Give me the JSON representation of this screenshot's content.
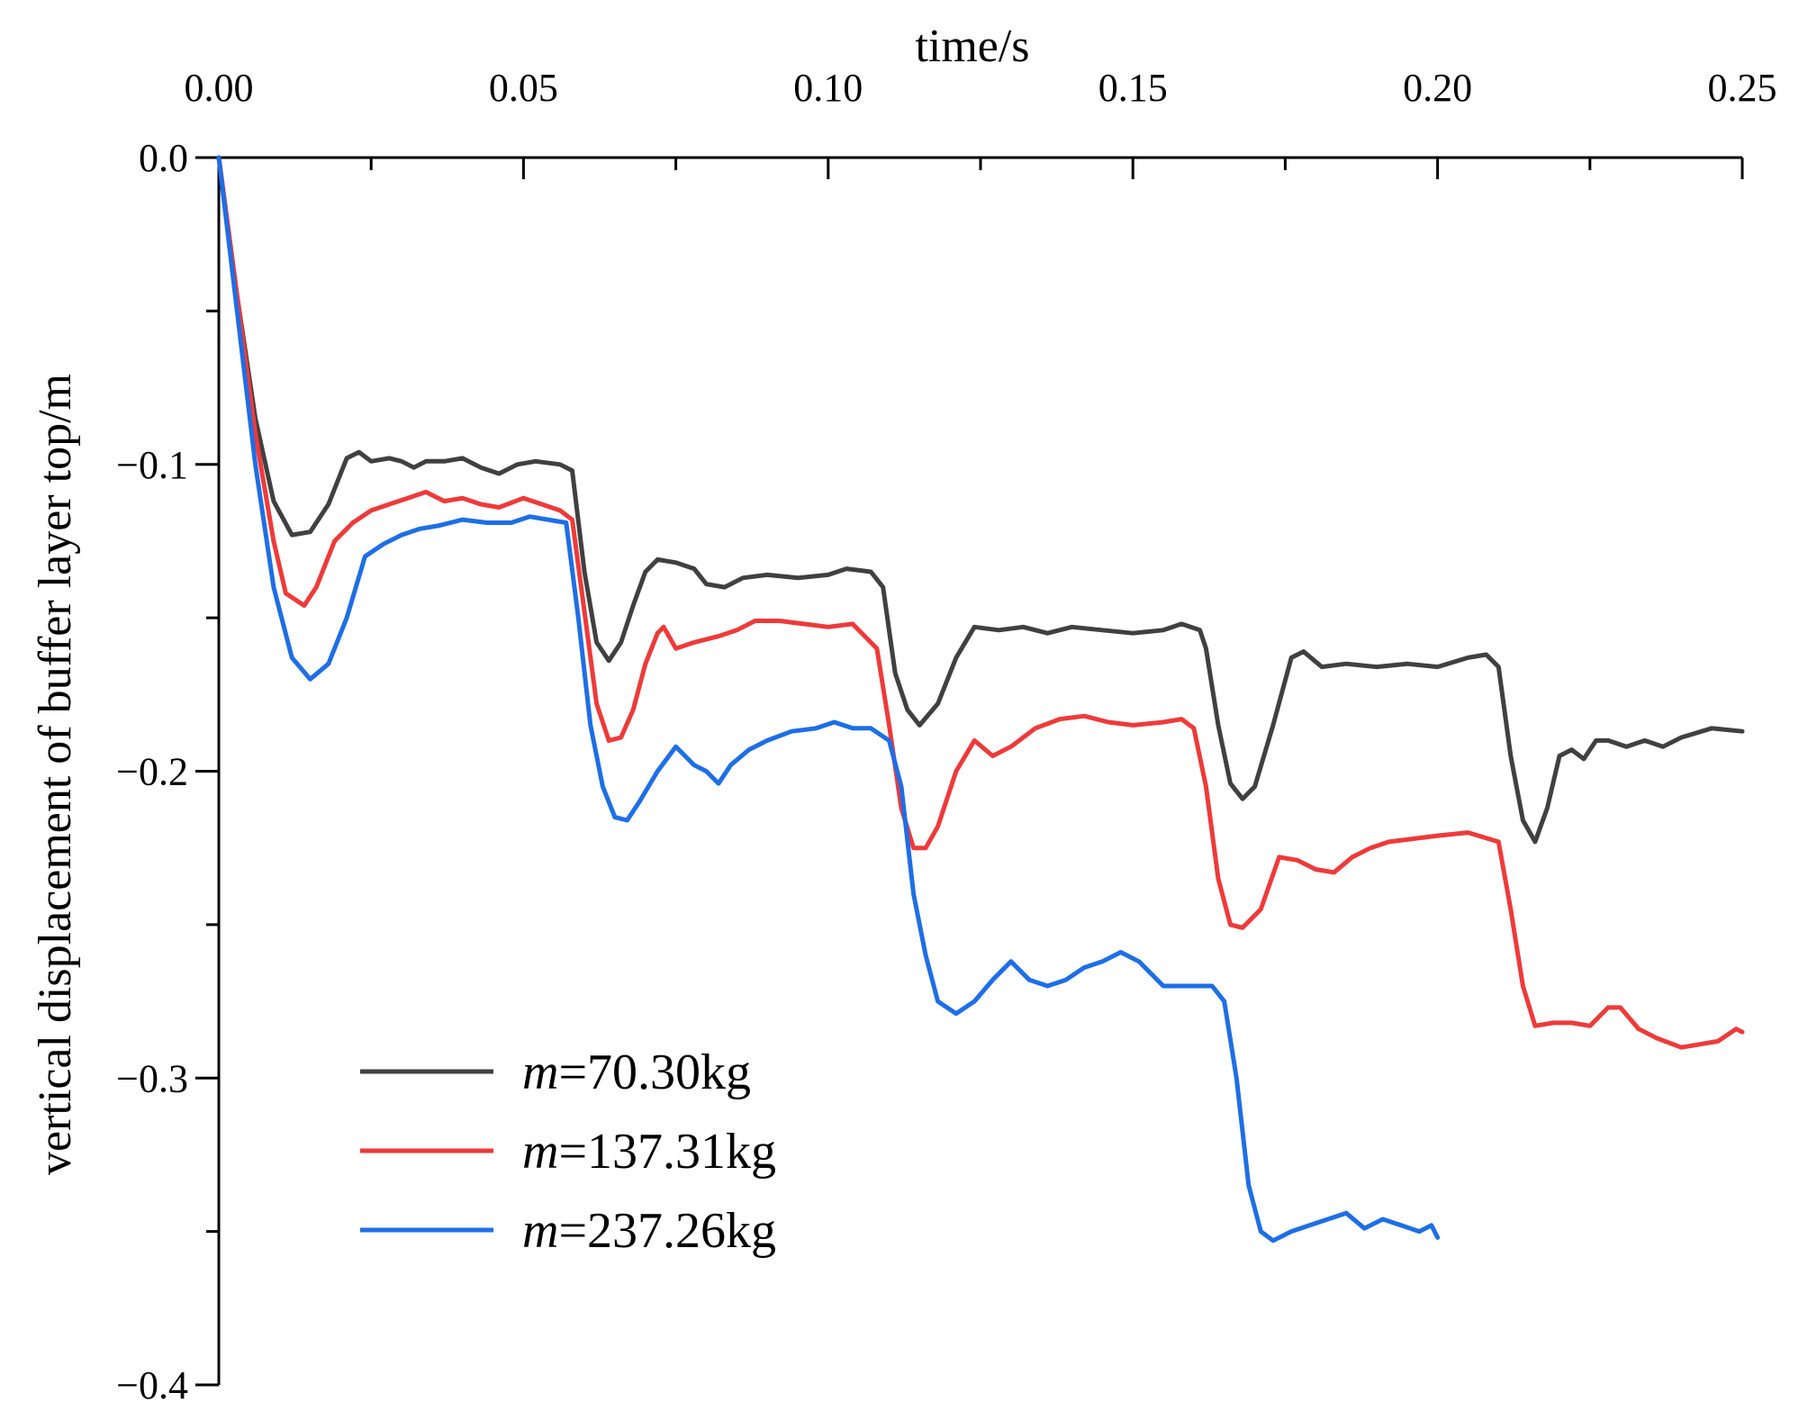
{
  "chart_data": {
    "type": "line",
    "title": "",
    "xlabel": "time/s",
    "ylabel": "vertical displacement of buffer layer top/m",
    "xlim": [
      0,
      0.25
    ],
    "ylim": [
      -0.4,
      0
    ],
    "x_ticks": [
      0.0,
      0.05,
      0.1,
      0.15,
      0.2,
      0.25
    ],
    "x_tick_labels": [
      "0.00",
      "0.05",
      "0.10",
      "0.15",
      "0.20",
      "0.25"
    ],
    "x_minor_ticks": [
      0.025,
      0.075,
      0.125,
      0.175,
      0.225
    ],
    "y_ticks": [
      0.0,
      -0.1,
      -0.2,
      -0.3,
      -0.4
    ],
    "y_tick_labels": [
      "0.0",
      "−0.1",
      "−0.2",
      "−0.3",
      "−0.4"
    ],
    "y_minor_ticks": [
      -0.05,
      -0.15,
      -0.25,
      -0.35
    ],
    "x_axis_position": "top",
    "grid": false,
    "legend_position": "bottom-left",
    "series": [
      {
        "name": "m=70.30kg",
        "legend_var": "m",
        "legend_value": "=70.30kg",
        "color": "#404040",
        "points": [
          [
            0,
            0
          ],
          [
            0.003,
            -0.045
          ],
          [
            0.006,
            -0.085
          ],
          [
            0.009,
            -0.112
          ],
          [
            0.012,
            -0.123
          ],
          [
            0.015,
            -0.122
          ],
          [
            0.018,
            -0.113
          ],
          [
            0.021,
            -0.098
          ],
          [
            0.023,
            -0.096
          ],
          [
            0.025,
            -0.099
          ],
          [
            0.028,
            -0.098
          ],
          [
            0.03,
            -0.099
          ],
          [
            0.032,
            -0.101
          ],
          [
            0.034,
            -0.099
          ],
          [
            0.037,
            -0.099
          ],
          [
            0.04,
            -0.098
          ],
          [
            0.043,
            -0.101
          ],
          [
            0.046,
            -0.103
          ],
          [
            0.049,
            -0.1
          ],
          [
            0.052,
            -0.099
          ],
          [
            0.056,
            -0.1
          ],
          [
            0.058,
            -0.102
          ],
          [
            0.06,
            -0.135
          ],
          [
            0.062,
            -0.158
          ],
          [
            0.064,
            -0.164
          ],
          [
            0.066,
            -0.158
          ],
          [
            0.068,
            -0.146
          ],
          [
            0.07,
            -0.135
          ],
          [
            0.072,
            -0.131
          ],
          [
            0.075,
            -0.132
          ],
          [
            0.078,
            -0.134
          ],
          [
            0.08,
            -0.139
          ],
          [
            0.083,
            -0.14
          ],
          [
            0.086,
            -0.137
          ],
          [
            0.09,
            -0.136
          ],
          [
            0.095,
            -0.137
          ],
          [
            0.1,
            -0.136
          ],
          [
            0.103,
            -0.134
          ],
          [
            0.107,
            -0.135
          ],
          [
            0.109,
            -0.14
          ],
          [
            0.111,
            -0.168
          ],
          [
            0.113,
            -0.18
          ],
          [
            0.115,
            -0.185
          ],
          [
            0.118,
            -0.178
          ],
          [
            0.121,
            -0.163
          ],
          [
            0.124,
            -0.153
          ],
          [
            0.128,
            -0.154
          ],
          [
            0.132,
            -0.153
          ],
          [
            0.136,
            -0.155
          ],
          [
            0.14,
            -0.153
          ],
          [
            0.145,
            -0.154
          ],
          [
            0.15,
            -0.155
          ],
          [
            0.155,
            -0.154
          ],
          [
            0.158,
            -0.152
          ],
          [
            0.161,
            -0.154
          ],
          [
            0.162,
            -0.16
          ],
          [
            0.164,
            -0.185
          ],
          [
            0.166,
            -0.204
          ],
          [
            0.168,
            -0.209
          ],
          [
            0.17,
            -0.205
          ],
          [
            0.173,
            -0.185
          ],
          [
            0.176,
            -0.163
          ],
          [
            0.178,
            -0.161
          ],
          [
            0.181,
            -0.166
          ],
          [
            0.185,
            -0.165
          ],
          [
            0.19,
            -0.166
          ],
          [
            0.195,
            -0.165
          ],
          [
            0.2,
            -0.166
          ],
          [
            0.205,
            -0.163
          ],
          [
            0.208,
            -0.162
          ],
          [
            0.21,
            -0.166
          ],
          [
            0.212,
            -0.195
          ],
          [
            0.214,
            -0.216
          ],
          [
            0.216,
            -0.223
          ],
          [
            0.218,
            -0.212
          ],
          [
            0.22,
            -0.195
          ],
          [
            0.222,
            -0.193
          ],
          [
            0.224,
            -0.196
          ],
          [
            0.226,
            -0.19
          ],
          [
            0.228,
            -0.19
          ],
          [
            0.231,
            -0.192
          ],
          [
            0.234,
            -0.19
          ],
          [
            0.237,
            -0.192
          ],
          [
            0.24,
            -0.189
          ],
          [
            0.245,
            -0.186
          ],
          [
            0.25,
            -0.187
          ]
        ]
      },
      {
        "name": "m=137.31kg",
        "legend_var": "m",
        "legend_value": "=137.31kg",
        "color": "#ee3a3a",
        "points": [
          [
            0,
            0
          ],
          [
            0.003,
            -0.045
          ],
          [
            0.006,
            -0.09
          ],
          [
            0.009,
            -0.125
          ],
          [
            0.011,
            -0.142
          ],
          [
            0.014,
            -0.146
          ],
          [
            0.016,
            -0.14
          ],
          [
            0.019,
            -0.125
          ],
          [
            0.022,
            -0.119
          ],
          [
            0.025,
            -0.115
          ],
          [
            0.028,
            -0.113
          ],
          [
            0.031,
            -0.111
          ],
          [
            0.034,
            -0.109
          ],
          [
            0.037,
            -0.112
          ],
          [
            0.04,
            -0.111
          ],
          [
            0.043,
            -0.113
          ],
          [
            0.046,
            -0.114
          ],
          [
            0.05,
            -0.111
          ],
          [
            0.053,
            -0.113
          ],
          [
            0.056,
            -0.115
          ],
          [
            0.058,
            -0.118
          ],
          [
            0.06,
            -0.148
          ],
          [
            0.062,
            -0.178
          ],
          [
            0.064,
            -0.19
          ],
          [
            0.066,
            -0.189
          ],
          [
            0.068,
            -0.18
          ],
          [
            0.07,
            -0.165
          ],
          [
            0.072,
            -0.155
          ],
          [
            0.073,
            -0.153
          ],
          [
            0.075,
            -0.16
          ],
          [
            0.078,
            -0.158
          ],
          [
            0.082,
            -0.156
          ],
          [
            0.085,
            -0.154
          ],
          [
            0.088,
            -0.151
          ],
          [
            0.092,
            -0.151
          ],
          [
            0.096,
            -0.152
          ],
          [
            0.1,
            -0.153
          ],
          [
            0.104,
            -0.152
          ],
          [
            0.108,
            -0.16
          ],
          [
            0.11,
            -0.185
          ],
          [
            0.112,
            -0.212
          ],
          [
            0.114,
            -0.225
          ],
          [
            0.116,
            -0.225
          ],
          [
            0.118,
            -0.218
          ],
          [
            0.121,
            -0.2
          ],
          [
            0.124,
            -0.19
          ],
          [
            0.127,
            -0.195
          ],
          [
            0.13,
            -0.192
          ],
          [
            0.134,
            -0.186
          ],
          [
            0.138,
            -0.183
          ],
          [
            0.142,
            -0.182
          ],
          [
            0.146,
            -0.184
          ],
          [
            0.15,
            -0.185
          ],
          [
            0.155,
            -0.184
          ],
          [
            0.158,
            -0.183
          ],
          [
            0.16,
            -0.186
          ],
          [
            0.162,
            -0.205
          ],
          [
            0.164,
            -0.235
          ],
          [
            0.166,
            -0.25
          ],
          [
            0.168,
            -0.251
          ],
          [
            0.171,
            -0.245
          ],
          [
            0.174,
            -0.228
          ],
          [
            0.177,
            -0.229
          ],
          [
            0.18,
            -0.232
          ],
          [
            0.183,
            -0.233
          ],
          [
            0.186,
            -0.228
          ],
          [
            0.189,
            -0.225
          ],
          [
            0.192,
            -0.223
          ],
          [
            0.196,
            -0.222
          ],
          [
            0.2,
            -0.221
          ],
          [
            0.205,
            -0.22
          ],
          [
            0.21,
            -0.223
          ],
          [
            0.212,
            -0.245
          ],
          [
            0.214,
            -0.27
          ],
          [
            0.216,
            -0.283
          ],
          [
            0.219,
            -0.282
          ],
          [
            0.222,
            -0.282
          ],
          [
            0.225,
            -0.283
          ],
          [
            0.228,
            -0.277
          ],
          [
            0.23,
            -0.277
          ],
          [
            0.233,
            -0.284
          ],
          [
            0.236,
            -0.287
          ],
          [
            0.24,
            -0.29
          ],
          [
            0.243,
            -0.289
          ],
          [
            0.246,
            -0.288
          ],
          [
            0.249,
            -0.284
          ],
          [
            0.25,
            -0.285
          ]
        ]
      },
      {
        "name": "m=237.26kg",
        "legend_var": "m",
        "legend_value": "=237.26kg",
        "color": "#1e6ee6",
        "points": [
          [
            0,
            0
          ],
          [
            0.003,
            -0.05
          ],
          [
            0.006,
            -0.1
          ],
          [
            0.009,
            -0.14
          ],
          [
            0.012,
            -0.163
          ],
          [
            0.015,
            -0.17
          ],
          [
            0.018,
            -0.165
          ],
          [
            0.021,
            -0.15
          ],
          [
            0.024,
            -0.13
          ],
          [
            0.027,
            -0.126
          ],
          [
            0.03,
            -0.123
          ],
          [
            0.033,
            -0.121
          ],
          [
            0.036,
            -0.12
          ],
          [
            0.04,
            -0.118
          ],
          [
            0.044,
            -0.119
          ],
          [
            0.048,
            -0.119
          ],
          [
            0.051,
            -0.117
          ],
          [
            0.054,
            -0.118
          ],
          [
            0.057,
            -0.119
          ],
          [
            0.059,
            -0.15
          ],
          [
            0.061,
            -0.185
          ],
          [
            0.063,
            -0.205
          ],
          [
            0.065,
            -0.215
          ],
          [
            0.067,
            -0.216
          ],
          [
            0.069,
            -0.21
          ],
          [
            0.072,
            -0.2
          ],
          [
            0.075,
            -0.192
          ],
          [
            0.078,
            -0.198
          ],
          [
            0.08,
            -0.2
          ],
          [
            0.082,
            -0.204
          ],
          [
            0.084,
            -0.198
          ],
          [
            0.087,
            -0.193
          ],
          [
            0.09,
            -0.19
          ],
          [
            0.094,
            -0.187
          ],
          [
            0.098,
            -0.186
          ],
          [
            0.101,
            -0.184
          ],
          [
            0.104,
            -0.186
          ],
          [
            0.107,
            -0.186
          ],
          [
            0.11,
            -0.19
          ],
          [
            0.112,
            -0.205
          ],
          [
            0.114,
            -0.24
          ],
          [
            0.116,
            -0.26
          ],
          [
            0.118,
            -0.275
          ],
          [
            0.121,
            -0.279
          ],
          [
            0.124,
            -0.275
          ],
          [
            0.127,
            -0.268
          ],
          [
            0.13,
            -0.262
          ],
          [
            0.133,
            -0.268
          ],
          [
            0.136,
            -0.27
          ],
          [
            0.139,
            -0.268
          ],
          [
            0.142,
            -0.264
          ],
          [
            0.145,
            -0.262
          ],
          [
            0.148,
            -0.259
          ],
          [
            0.151,
            -0.262
          ],
          [
            0.155,
            -0.27
          ],
          [
            0.16,
            -0.27
          ],
          [
            0.163,
            -0.27
          ],
          [
            0.165,
            -0.275
          ],
          [
            0.167,
            -0.3
          ],
          [
            0.169,
            -0.335
          ],
          [
            0.171,
            -0.35
          ],
          [
            0.173,
            -0.353
          ],
          [
            0.176,
            -0.35
          ],
          [
            0.179,
            -0.348
          ],
          [
            0.182,
            -0.346
          ],
          [
            0.185,
            -0.344
          ],
          [
            0.188,
            -0.349
          ],
          [
            0.191,
            -0.346
          ],
          [
            0.194,
            -0.348
          ],
          [
            0.197,
            -0.35
          ],
          [
            0.199,
            -0.348
          ],
          [
            0.2,
            -0.352
          ]
        ]
      }
    ]
  }
}
